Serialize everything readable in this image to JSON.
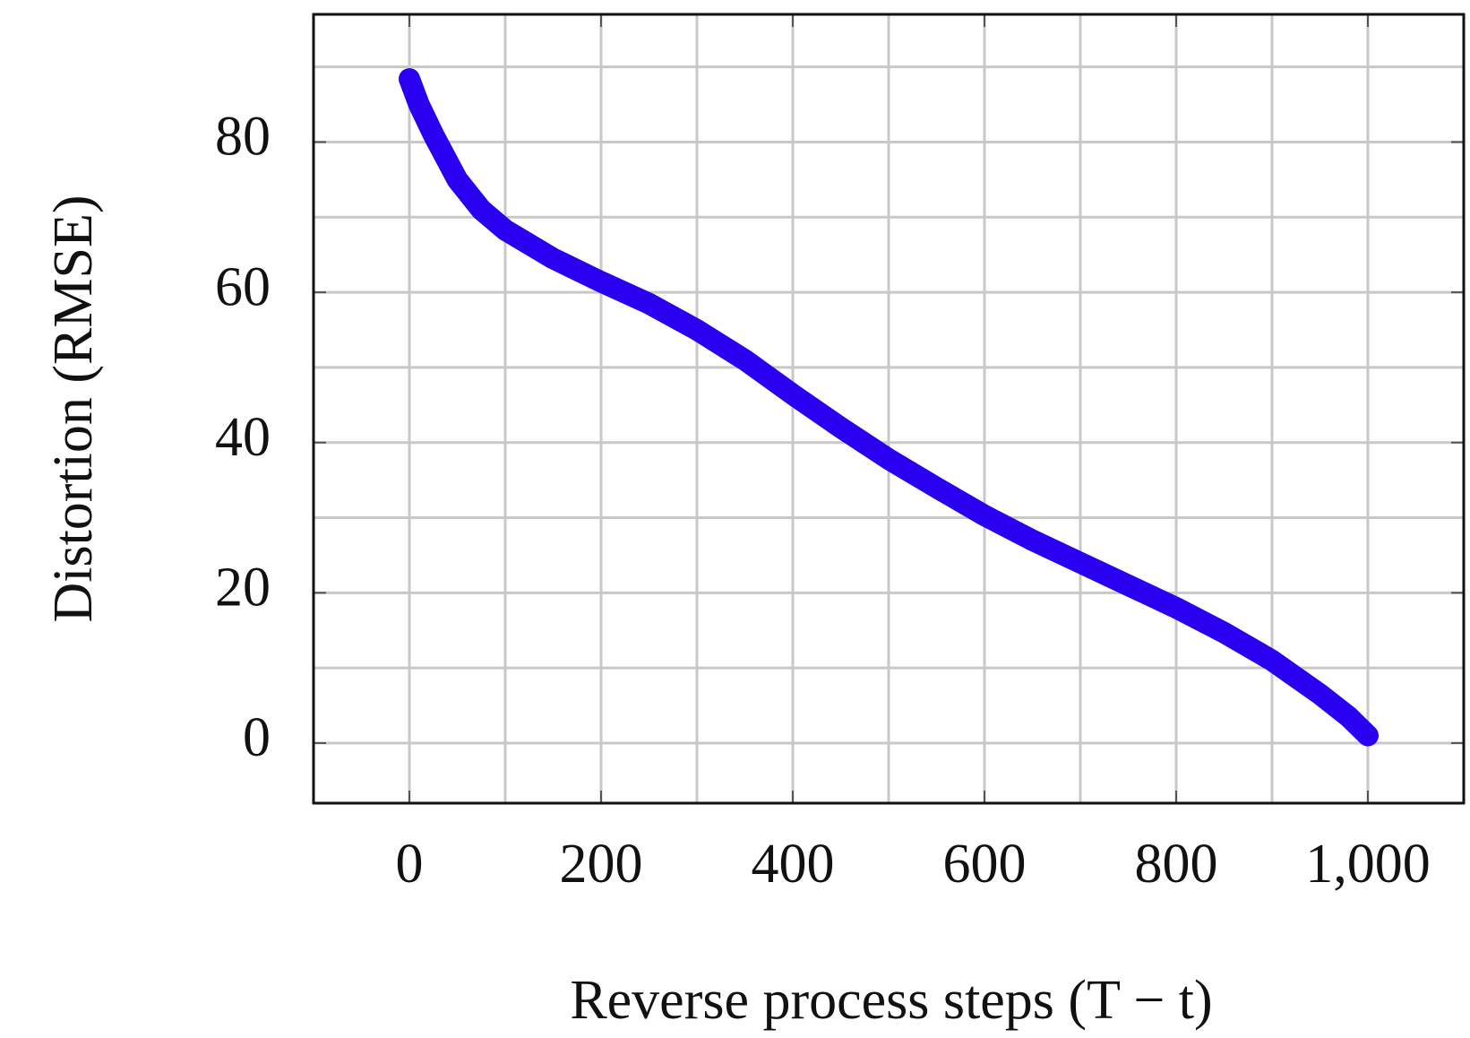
{
  "chart_data": {
    "type": "line",
    "x_label": "Reverse process steps (T − t)",
    "y_label": "Distortion (RMSE)",
    "x": [
      0,
      10,
      25,
      50,
      75,
      100,
      150,
      200,
      250,
      300,
      350,
      400,
      450,
      500,
      550,
      600,
      650,
      700,
      750,
      800,
      850,
      900,
      950,
      980,
      1000
    ],
    "series": [
      {
        "color": "#2a00f0",
        "values": [
          88.4,
          85,
          81,
          75,
          71,
          68.3,
          64.5,
          61.4,
          58.5,
          55,
          51,
          46.4,
          42,
          37.8,
          34,
          30.3,
          27,
          24,
          21,
          18,
          14.7,
          11,
          6.5,
          3.5,
          1
        ]
      }
    ],
    "xlim": [
      -100,
      1100
    ],
    "ylim": [
      -8,
      97
    ],
    "xticks": [
      0,
      200,
      400,
      600,
      800,
      {
        "value": 1000,
        "label": "1,000"
      }
    ],
    "yticks": [
      0,
      20,
      40,
      60,
      80
    ],
    "xgrid": [
      0,
      100,
      200,
      300,
      400,
      500,
      600,
      700,
      800,
      900,
      1000
    ],
    "ygrid": [
      0,
      10,
      20,
      30,
      40,
      50,
      60,
      70,
      80,
      90
    ],
    "grid": true
  }
}
